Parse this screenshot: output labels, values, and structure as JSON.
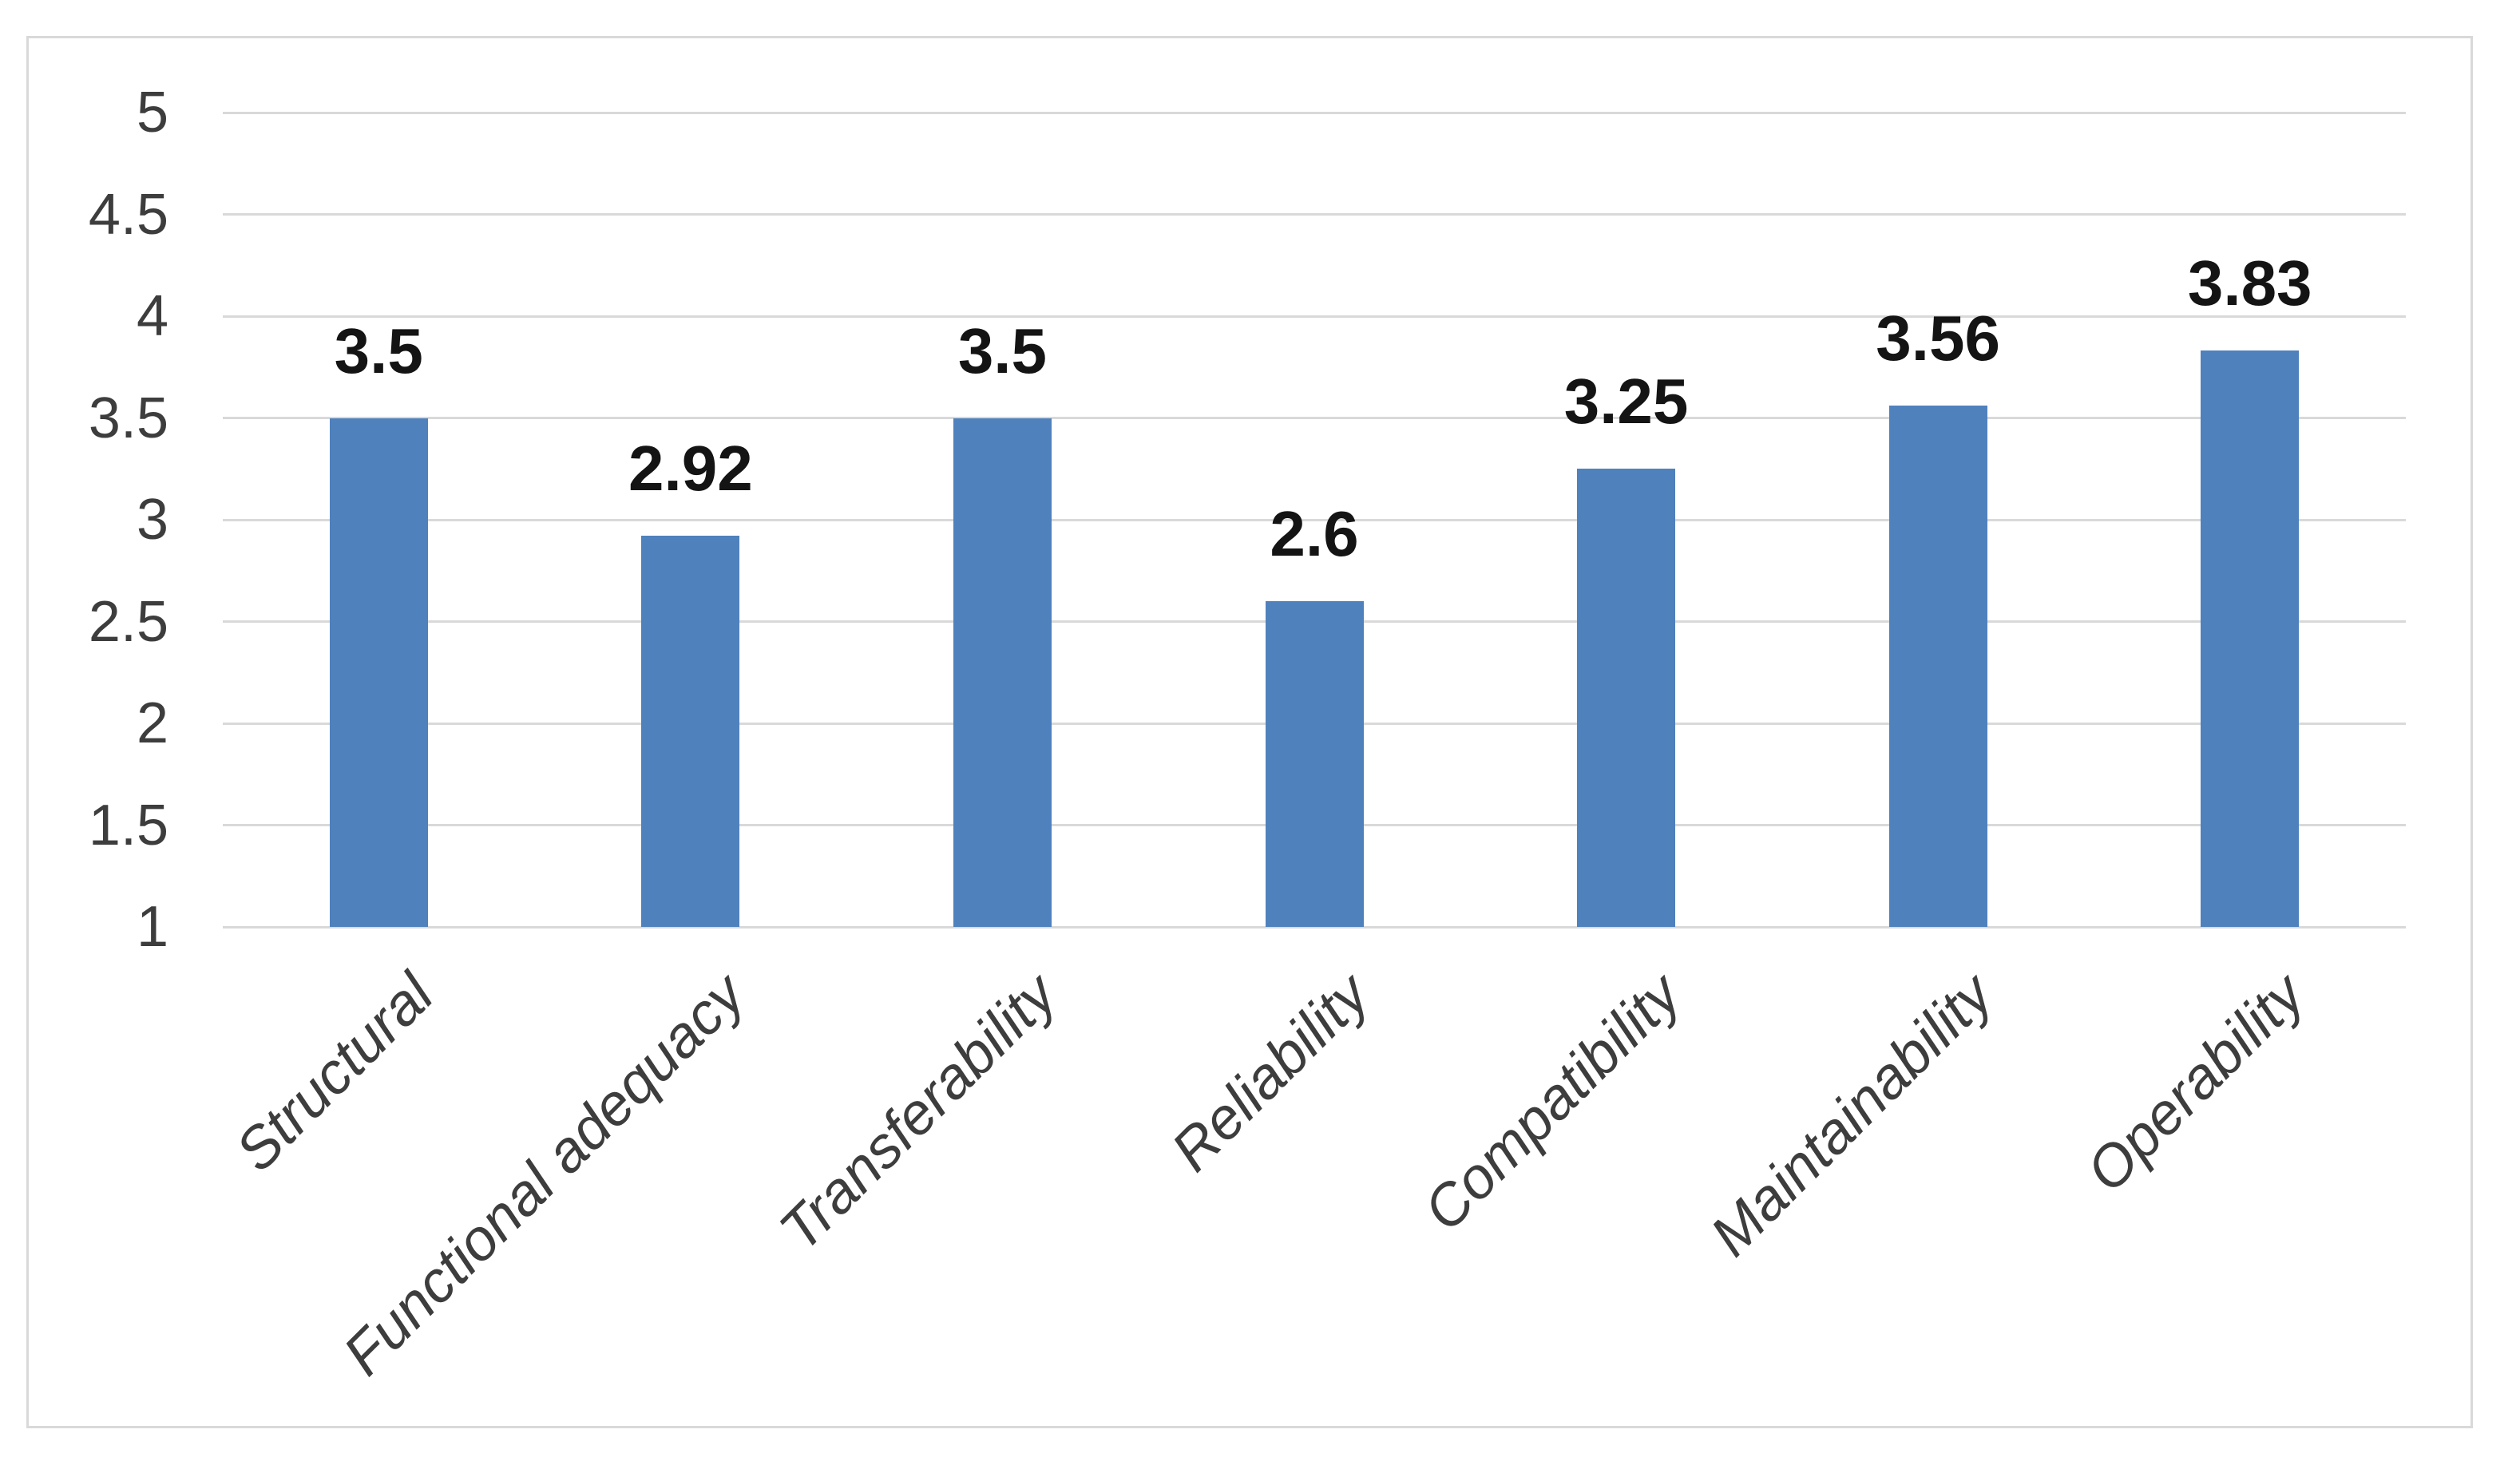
{
  "chart_data": {
    "type": "bar",
    "title": "",
    "xlabel": "",
    "ylabel": "",
    "categories": [
      "Structural",
      "Functional adequacy",
      "Transferability",
      "Reliability",
      "Compatibility",
      "Maintainability",
      "Operability"
    ],
    "values": [
      3.5,
      2.92,
      3.5,
      2.6,
      3.25,
      3.56,
      3.83
    ],
    "data_labels": [
      "3.5",
      "2.92",
      "3.5",
      "2.6",
      "3.25",
      "3.56",
      "3.83"
    ],
    "ylim": [
      1,
      5
    ],
    "ytick_values": [
      5,
      4.5,
      4,
      3.5,
      3,
      2.5,
      2,
      1.5,
      1
    ],
    "ytick_labels": [
      "5",
      "4.5",
      "4",
      "3.5",
      "3",
      "2.5",
      "2",
      "1.5",
      "1"
    ],
    "grid": "horizontal-only",
    "legend_position": "none",
    "colors": {
      "bar": "#4F81BD",
      "gridline": "#D9D9D9",
      "frame_border": "#D9D9D9",
      "background": "#FFFFFF",
      "axis_text": "#3D3D3D",
      "data_label_text": "#141414"
    }
  }
}
